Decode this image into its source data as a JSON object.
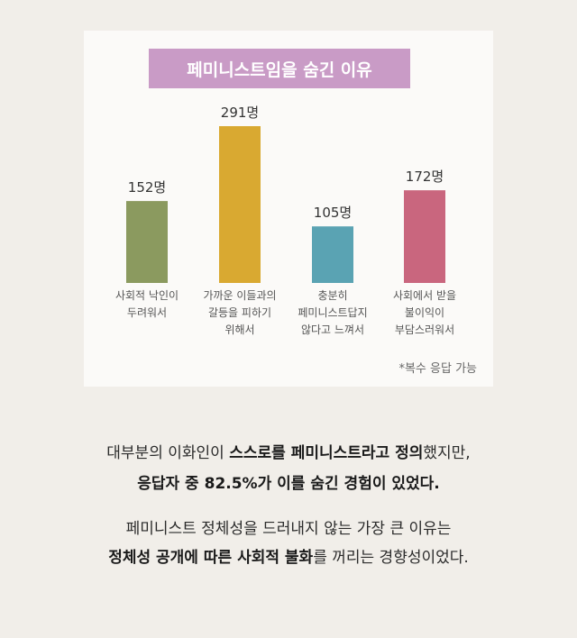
{
  "chart_data": {
    "type": "bar",
    "title": "페미니스트임을 숨긴 이유",
    "categories": [
      [
        "사회적 낙인이",
        "두려워서"
      ],
      [
        "가까운 이들과의",
        "갈등을 피하기",
        "위해서"
      ],
      [
        "충분히",
        "페미니스트답지",
        "않다고 느껴서"
      ],
      [
        "사회에서 받을",
        "불이익이",
        "부담스러워서"
      ]
    ],
    "values": [
      152,
      291,
      105,
      172
    ],
    "value_labels": [
      "152명",
      "291명",
      "105명",
      "172명"
    ],
    "colors": [
      "#8b9a5f",
      "#d9a931",
      "#5aa3b3",
      "#c9667e"
    ],
    "ylim": [
      0,
      291
    ],
    "grid": false,
    "footnote": "*복수 응답 가능"
  },
  "caption": {
    "line1": [
      {
        "text": "대부분의 이화인이 ",
        "bold": false
      },
      {
        "text": "스스로를 페미니스트라고 정의",
        "bold": true
      },
      {
        "text": "했지만,",
        "bold": false
      }
    ],
    "line2": [
      {
        "text": "응답자 중 82.5%가 이를 숨긴 경험이 있었다.",
        "bold": true
      }
    ],
    "line3": [
      {
        "text": "페미니스트 정체성을 드러내지 않는 가장 큰 이유는",
        "bold": false
      }
    ],
    "line4": [
      {
        "text": "정체성 공개에 따른 사회적 불화",
        "bold": true
      },
      {
        "text": "를 꺼리는 경향성이었다.",
        "bold": false
      }
    ]
  }
}
